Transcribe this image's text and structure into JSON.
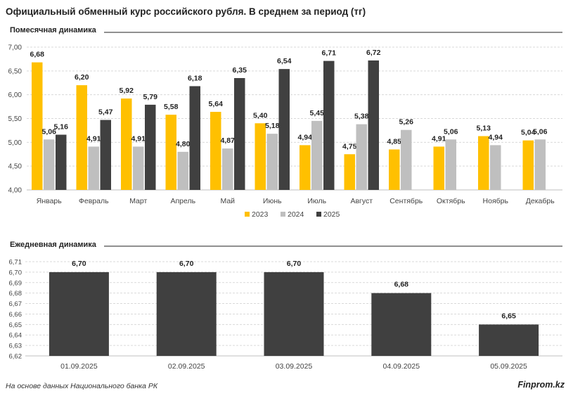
{
  "title": "Официальный обменный курс российского рубля. В среднем за период (тг)",
  "footer": {
    "source": "На основе данных Национального банка РК",
    "brand": "Finprom.kz"
  },
  "colors": {
    "2023": "#FFC000",
    "2024": "#BFBFBF",
    "2025": "#404040",
    "grid": "#d9d9d9",
    "axis": "#bfbfbf",
    "divider": "#222222"
  },
  "chart_data": [
    {
      "type": "bar",
      "section_title": "Помесячная динамика",
      "categories": [
        "Январь",
        "Февраль",
        "Март",
        "Апрель",
        "Май",
        "Июнь",
        "Июль",
        "Август",
        "Сентябрь",
        "Октябрь",
        "Ноябрь",
        "Декабрь"
      ],
      "series": [
        {
          "name": "2023",
          "color": "#FFC000",
          "values": [
            6.68,
            6.2,
            5.92,
            5.58,
            5.64,
            5.4,
            4.94,
            4.75,
            4.85,
            4.91,
            5.13,
            5.04
          ]
        },
        {
          "name": "2024",
          "color": "#BFBFBF",
          "values": [
            5.06,
            4.91,
            4.91,
            4.8,
            4.87,
            5.18,
            5.45,
            5.38,
            5.26,
            5.06,
            4.94,
            5.06
          ]
        },
        {
          "name": "2025",
          "color": "#404040",
          "values": [
            5.16,
            5.47,
            5.79,
            6.18,
            6.35,
            6.54,
            6.71,
            6.72,
            null,
            null,
            null,
            null
          ]
        }
      ],
      "value_labels": {
        "2023": [
          "6,68",
          "6,20",
          "5,92",
          "5,58",
          "5,64",
          "5,40",
          "4,94",
          "4,75",
          "4,85",
          "4,91",
          "5,13",
          "5,04"
        ],
        "2024": [
          "5,06",
          "4,91",
          "4,91",
          "4,80",
          "4,87",
          "5,18",
          "5,45",
          "5,38",
          "5,26",
          "5,06",
          "4,94",
          "5,06"
        ],
        "2025": [
          "5,16",
          "5,47",
          "5,79",
          "6,18",
          "6,35",
          "6,54",
          "6,71",
          "6,72",
          "",
          "",
          "",
          ""
        ]
      },
      "ylim": [
        4.0,
        7.0
      ],
      "yticks": [
        "4,00",
        "4,50",
        "5,00",
        "5,50",
        "6,00",
        "6,50",
        "7,00"
      ],
      "grid": true,
      "legend": [
        "2023",
        "2024",
        "2025"
      ],
      "legend_position": "bottom"
    },
    {
      "type": "bar",
      "section_title": "Ежедневная динамика",
      "categories": [
        "01.09.2025",
        "02.09.2025",
        "03.09.2025",
        "04.09.2025",
        "05.09.2025"
      ],
      "values": [
        6.7,
        6.7,
        6.7,
        6.68,
        6.65
      ],
      "value_labels": [
        "6,70",
        "6,70",
        "6,70",
        "6,68",
        "6,65"
      ],
      "color": "#404040",
      "ylim": [
        6.62,
        6.71
      ],
      "yticks": [
        "6,62",
        "6,63",
        "6,64",
        "6,65",
        "6,66",
        "6,67",
        "6,68",
        "6,69",
        "6,70",
        "6,71"
      ],
      "grid": true
    }
  ]
}
